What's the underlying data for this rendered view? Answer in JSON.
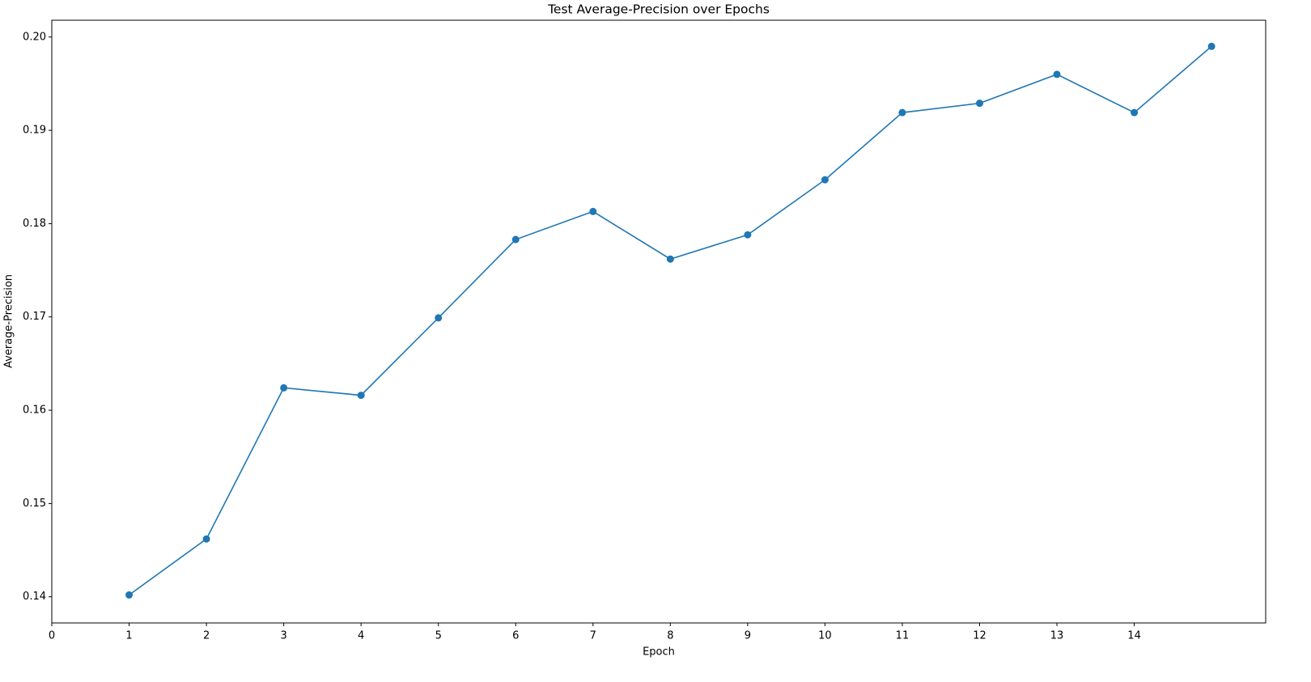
{
  "chart_data": {
    "type": "line",
    "title": "Test Average-Precision over Epochs",
    "x_label": "Epoch",
    "y_label": "Average-Precision",
    "x": [
      1,
      2,
      3,
      4,
      5,
      6,
      7,
      8,
      9,
      10,
      11,
      12,
      13,
      14,
      15
    ],
    "series": [
      {
        "name": "Average-Precision",
        "color": "#1f77b4",
        "values": [
          0.1402,
          0.1462,
          0.1624,
          0.1616,
          0.1699,
          0.1783,
          0.1813,
          0.1762,
          0.1788,
          0.1847,
          0.1919,
          0.1929,
          0.196,
          0.1919,
          0.199
        ]
      }
    ],
    "xlim": [
      0,
      15.7
    ],
    "ylim": [
      0.1372,
      0.2018
    ],
    "xticks": [
      0,
      1,
      2,
      3,
      4,
      5,
      6,
      7,
      8,
      9,
      10,
      11,
      12,
      13,
      14
    ],
    "yticks": [
      {
        "value": 0.14,
        "label": "0.14"
      },
      {
        "value": 0.15,
        "label": "0.15"
      },
      {
        "value": 0.16,
        "label": "0.16"
      },
      {
        "value": 0.17,
        "label": "0.17"
      },
      {
        "value": 0.18,
        "label": "0.18"
      },
      {
        "value": 0.19,
        "label": "0.19"
      },
      {
        "value": 0.2,
        "label": "0.20"
      }
    ],
    "grid": false
  }
}
